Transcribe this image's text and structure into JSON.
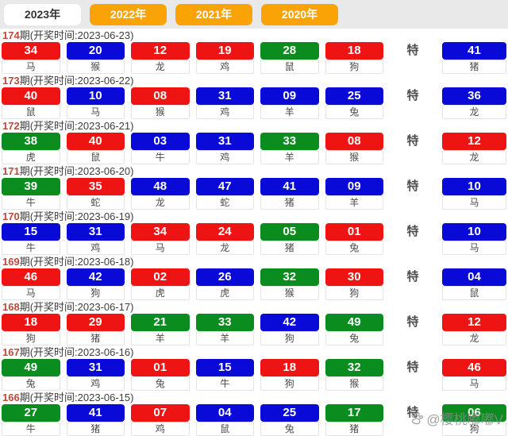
{
  "tabs": [
    {
      "label": "2023年",
      "active": true
    },
    {
      "label": "2022年",
      "active": false
    },
    {
      "label": "2021年",
      "active": false
    },
    {
      "label": "2020年",
      "active": false
    }
  ],
  "labels": {
    "period_prefix": "期(开奖时间:",
    "period_suffix": ")",
    "special": "特"
  },
  "colors": {
    "red": "#ee1414",
    "blue": "#0a0ad8",
    "green": "#0a8c1f",
    "tab_orange": "#faa307",
    "tab_active_bg": "#ffffff",
    "period_number": "#bc4a38"
  },
  "draws": [
    {
      "period": "174",
      "date": "2023-06-23",
      "balls": [
        {
          "num": "34",
          "color": "red",
          "zodiac": "马"
        },
        {
          "num": "20",
          "color": "blue",
          "zodiac": "猴"
        },
        {
          "num": "12",
          "color": "red",
          "zodiac": "龙"
        },
        {
          "num": "19",
          "color": "red",
          "zodiac": "鸡"
        },
        {
          "num": "28",
          "color": "green",
          "zodiac": "鼠"
        },
        {
          "num": "18",
          "color": "red",
          "zodiac": "狗"
        }
      ],
      "special": {
        "num": "41",
        "color": "blue",
        "zodiac": "猪"
      }
    },
    {
      "period": "173",
      "date": "2023-06-22",
      "balls": [
        {
          "num": "40",
          "color": "red",
          "zodiac": "鼠"
        },
        {
          "num": "10",
          "color": "blue",
          "zodiac": "马"
        },
        {
          "num": "08",
          "color": "red",
          "zodiac": "猴"
        },
        {
          "num": "31",
          "color": "blue",
          "zodiac": "鸡"
        },
        {
          "num": "09",
          "color": "blue",
          "zodiac": "羊"
        },
        {
          "num": "25",
          "color": "blue",
          "zodiac": "兔"
        }
      ],
      "special": {
        "num": "36",
        "color": "blue",
        "zodiac": "龙"
      }
    },
    {
      "period": "172",
      "date": "2023-06-21",
      "balls": [
        {
          "num": "38",
          "color": "green",
          "zodiac": "虎"
        },
        {
          "num": "40",
          "color": "red",
          "zodiac": "鼠"
        },
        {
          "num": "03",
          "color": "blue",
          "zodiac": "牛"
        },
        {
          "num": "31",
          "color": "blue",
          "zodiac": "鸡"
        },
        {
          "num": "33",
          "color": "green",
          "zodiac": "羊"
        },
        {
          "num": "08",
          "color": "red",
          "zodiac": "猴"
        }
      ],
      "special": {
        "num": "12",
        "color": "red",
        "zodiac": "龙"
      }
    },
    {
      "period": "171",
      "date": "2023-06-20",
      "balls": [
        {
          "num": "39",
          "color": "green",
          "zodiac": "牛"
        },
        {
          "num": "35",
          "color": "red",
          "zodiac": "蛇"
        },
        {
          "num": "48",
          "color": "blue",
          "zodiac": "龙"
        },
        {
          "num": "47",
          "color": "blue",
          "zodiac": "蛇"
        },
        {
          "num": "41",
          "color": "blue",
          "zodiac": "猪"
        },
        {
          "num": "09",
          "color": "blue",
          "zodiac": "羊"
        }
      ],
      "special": {
        "num": "10",
        "color": "blue",
        "zodiac": "马"
      }
    },
    {
      "period": "170",
      "date": "2023-06-19",
      "balls": [
        {
          "num": "15",
          "color": "blue",
          "zodiac": "牛"
        },
        {
          "num": "31",
          "color": "blue",
          "zodiac": "鸡"
        },
        {
          "num": "34",
          "color": "red",
          "zodiac": "马"
        },
        {
          "num": "24",
          "color": "red",
          "zodiac": "龙"
        },
        {
          "num": "05",
          "color": "green",
          "zodiac": "猪"
        },
        {
          "num": "01",
          "color": "red",
          "zodiac": "兔"
        }
      ],
      "special": {
        "num": "10",
        "color": "blue",
        "zodiac": "马"
      }
    },
    {
      "period": "169",
      "date": "2023-06-18",
      "balls": [
        {
          "num": "46",
          "color": "red",
          "zodiac": "马"
        },
        {
          "num": "42",
          "color": "blue",
          "zodiac": "狗"
        },
        {
          "num": "02",
          "color": "red",
          "zodiac": "虎"
        },
        {
          "num": "26",
          "color": "blue",
          "zodiac": "虎"
        },
        {
          "num": "32",
          "color": "green",
          "zodiac": "猴"
        },
        {
          "num": "30",
          "color": "red",
          "zodiac": "狗"
        }
      ],
      "special": {
        "num": "04",
        "color": "blue",
        "zodiac": "鼠"
      }
    },
    {
      "period": "168",
      "date": "2023-06-17",
      "balls": [
        {
          "num": "18",
          "color": "red",
          "zodiac": "狗"
        },
        {
          "num": "29",
          "color": "red",
          "zodiac": "猪"
        },
        {
          "num": "21",
          "color": "green",
          "zodiac": "羊"
        },
        {
          "num": "33",
          "color": "green",
          "zodiac": "羊"
        },
        {
          "num": "42",
          "color": "blue",
          "zodiac": "狗"
        },
        {
          "num": "49",
          "color": "green",
          "zodiac": "兔"
        }
      ],
      "special": {
        "num": "12",
        "color": "red",
        "zodiac": "龙"
      }
    },
    {
      "period": "167",
      "date": "2023-06-16",
      "balls": [
        {
          "num": "49",
          "color": "green",
          "zodiac": "兔"
        },
        {
          "num": "31",
          "color": "blue",
          "zodiac": "鸡"
        },
        {
          "num": "01",
          "color": "red",
          "zodiac": "兔"
        },
        {
          "num": "15",
          "color": "blue",
          "zodiac": "牛"
        },
        {
          "num": "18",
          "color": "red",
          "zodiac": "狗"
        },
        {
          "num": "32",
          "color": "green",
          "zodiac": "猴"
        }
      ],
      "special": {
        "num": "46",
        "color": "red",
        "zodiac": "马"
      }
    },
    {
      "period": "166",
      "date": "2023-06-15",
      "balls": [
        {
          "num": "27",
          "color": "green",
          "zodiac": "牛"
        },
        {
          "num": "41",
          "color": "blue",
          "zodiac": "猪"
        },
        {
          "num": "07",
          "color": "red",
          "zodiac": "鸡"
        },
        {
          "num": "04",
          "color": "blue",
          "zodiac": "鼠"
        },
        {
          "num": "25",
          "color": "blue",
          "zodiac": "兔"
        },
        {
          "num": "17",
          "color": "green",
          "zodiac": "猪"
        }
      ],
      "special": {
        "num": "06",
        "color": "green",
        "zodiac": "狗"
      }
    }
  ],
  "watermark": {
    "text": "@樱桃嘟嘟V"
  }
}
